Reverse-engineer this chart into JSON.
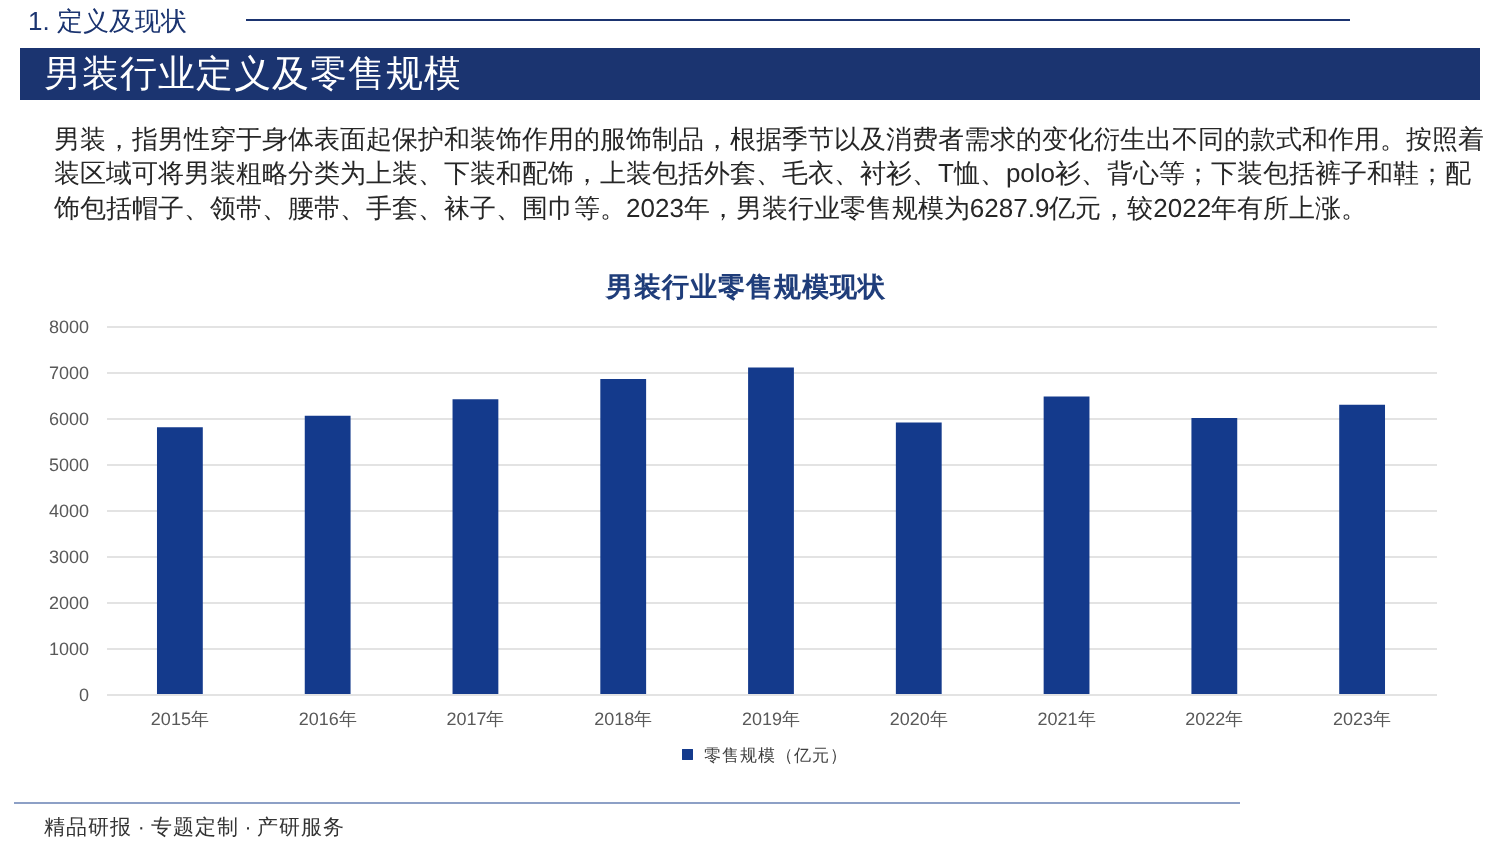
{
  "chart_data": {
    "type": "bar",
    "title": "男装行业零售规模现状",
    "categories": [
      "2015年",
      "2016年",
      "2017年",
      "2018年",
      "2019年",
      "2020年",
      "2021年",
      "2022年",
      "2023年"
    ],
    "series": [
      {
        "name": "零售规模（亿元）",
        "color": "#143a8c",
        "values": [
          5800,
          6050,
          6410,
          6850,
          7100,
          5900,
          6470,
          6000,
          6287.9
        ]
      }
    ],
    "ylim": [
      0,
      8000
    ],
    "yticks": [
      0,
      1000,
      2000,
      3000,
      4000,
      5000,
      6000,
      7000,
      8000
    ],
    "grid": "y",
    "legend": "bottom",
    "annotations": [
      "1. 定义及现状",
      "男装行业定义及零售规模",
      "男装，指男性穿于身体表面起保护和装饰作用的服饰制品，根据季节以及消费者需求的变化衍生出不同的款式和作用。按照着装区域可将男装粗略分类为上装、下装和配饰，上装包括外套、毛衣、衬衫、T恤、polo衫、背心等；下装包括裤子和鞋；配饰包括帽子、领带、腰带、手套、袜子、围巾等。2023年，男装行业零售规模为6287.9亿元，较2022年有所上涨。",
      "精品研报 · 专题定制 · 产研服务"
    ]
  }
}
